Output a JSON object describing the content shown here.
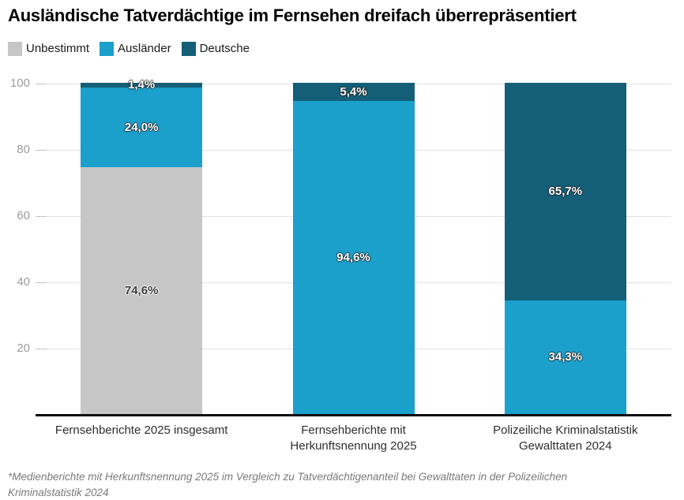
{
  "chart_data": {
    "type": "bar",
    "stacked": true,
    "orientation": "vertical",
    "title": "Ausländische Tatverdächtige im Fernsehen dreifach überrepräsentiert",
    "categories": [
      "Fernsehberichte 2025 insgesamt",
      "Fernsehberichte mit\nHerkunftsnennung 2025",
      "Polizeiliche Kriminalstatistik\nGewalttaten 2024"
    ],
    "series": [
      {
        "name": "Unbestimmt",
        "color": "#c6c6c6",
        "label_style": "dark",
        "values": [
          74.6,
          0,
          0
        ],
        "labels": [
          "74,6%",
          "",
          ""
        ]
      },
      {
        "name": "Ausländer",
        "color": "#1b9fcb",
        "label_style": "light",
        "values": [
          24.0,
          94.6,
          34.3
        ],
        "labels": [
          "24,0%",
          "94,6%",
          "34,3%"
        ]
      },
      {
        "name": "Deutsche",
        "color": "#155e78",
        "label_style": "light",
        "values": [
          1.4,
          5.4,
          65.7
        ],
        "labels": [
          "1,4%",
          "5,4%",
          "65,7%"
        ]
      }
    ],
    "ylim": [
      0,
      100
    ],
    "yticks": [
      20,
      40,
      60,
      80,
      100
    ],
    "grid": true,
    "legend_position": "top-left",
    "value_format": "percent-german-comma",
    "footnote": "*Medienberichte mit Herkunftsnennung 2025 im Vergleich zu Tatverdächtigenanteil bei Gewalttaten in der Polizeilichen\nKriminalstatistik 2024"
  }
}
